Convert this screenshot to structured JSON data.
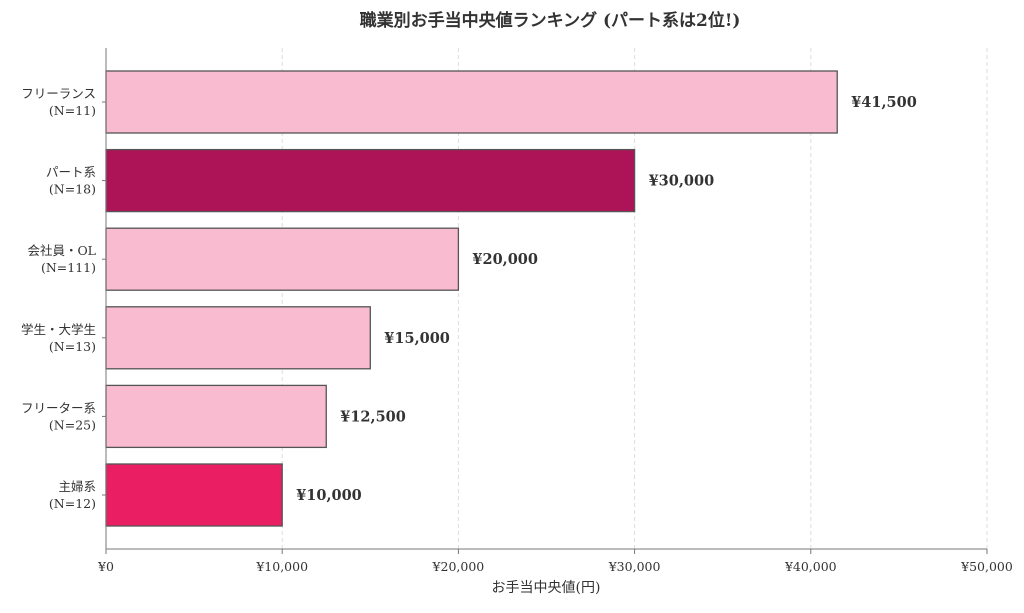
{
  "chart_data": {
    "type": "bar",
    "orientation": "horizontal",
    "title": "職業別お手当中央値ランキング (パート系は2位!)",
    "xlabel": "お手当中央値(円)",
    "ylabel": "",
    "xlim": [
      0,
      50000
    ],
    "x_ticks": [
      {
        "value": 0,
        "label": "¥0"
      },
      {
        "value": 10000,
        "label": "¥10,000"
      },
      {
        "value": 20000,
        "label": "¥20,000"
      },
      {
        "value": 30000,
        "label": "¥30,000"
      },
      {
        "value": 40000,
        "label": "¥40,000"
      },
      {
        "value": 50000,
        "label": "¥50,000"
      }
    ],
    "grid": "vertical-dashed",
    "bars": [
      {
        "category": "フリーランス",
        "n_label": "(N=11)",
        "value": 41500,
        "value_label": "¥41,500",
        "color": "#f8bbd0"
      },
      {
        "category": "パート系",
        "n_label": "(N=18)",
        "value": 30000,
        "value_label": "¥30,000",
        "color": "#ad1457"
      },
      {
        "category": "会社員・OL",
        "n_label": "(N=111)",
        "value": 20000,
        "value_label": "¥20,000",
        "color": "#f8bbd0"
      },
      {
        "category": "学生・大学生",
        "n_label": "(N=13)",
        "value": 15000,
        "value_label": "¥15,000",
        "color": "#f8bbd0"
      },
      {
        "category": "フリーター系",
        "n_label": "(N=25)",
        "value": 12500,
        "value_label": "¥12,500",
        "color": "#f8bbd0"
      },
      {
        "category": "主婦系",
        "n_label": "(N=12)",
        "value": 10000,
        "value_label": "¥10,000",
        "color": "#e91e63"
      }
    ],
    "colors": {
      "bar_stroke": "#555555",
      "text": "#333333",
      "axis": "#777777",
      "grid": "#dddddd"
    }
  }
}
